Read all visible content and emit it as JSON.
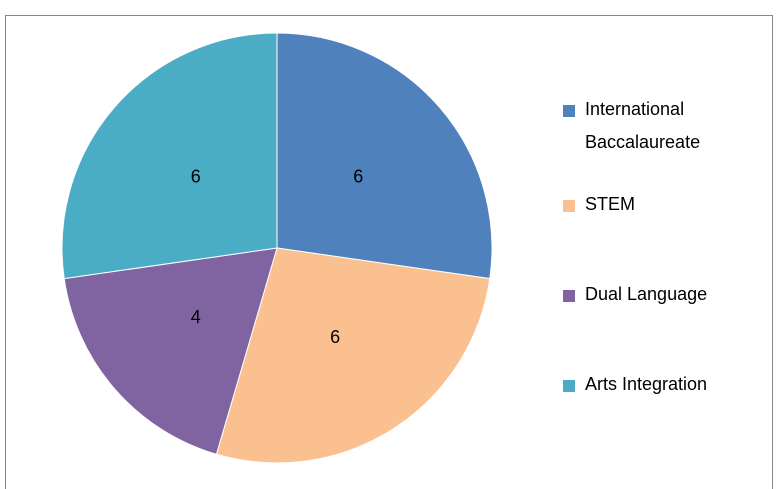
{
  "chart_data": {
    "type": "pie",
    "categories": [
      "International Baccalaureate",
      "STEM",
      "Dual Language",
      "Arts Integration"
    ],
    "values": [
      6,
      6,
      4,
      6
    ],
    "colors": [
      "#4f81bd",
      "#fac090",
      "#8064a2",
      "#4bacc6"
    ],
    "legend": "right"
  }
}
